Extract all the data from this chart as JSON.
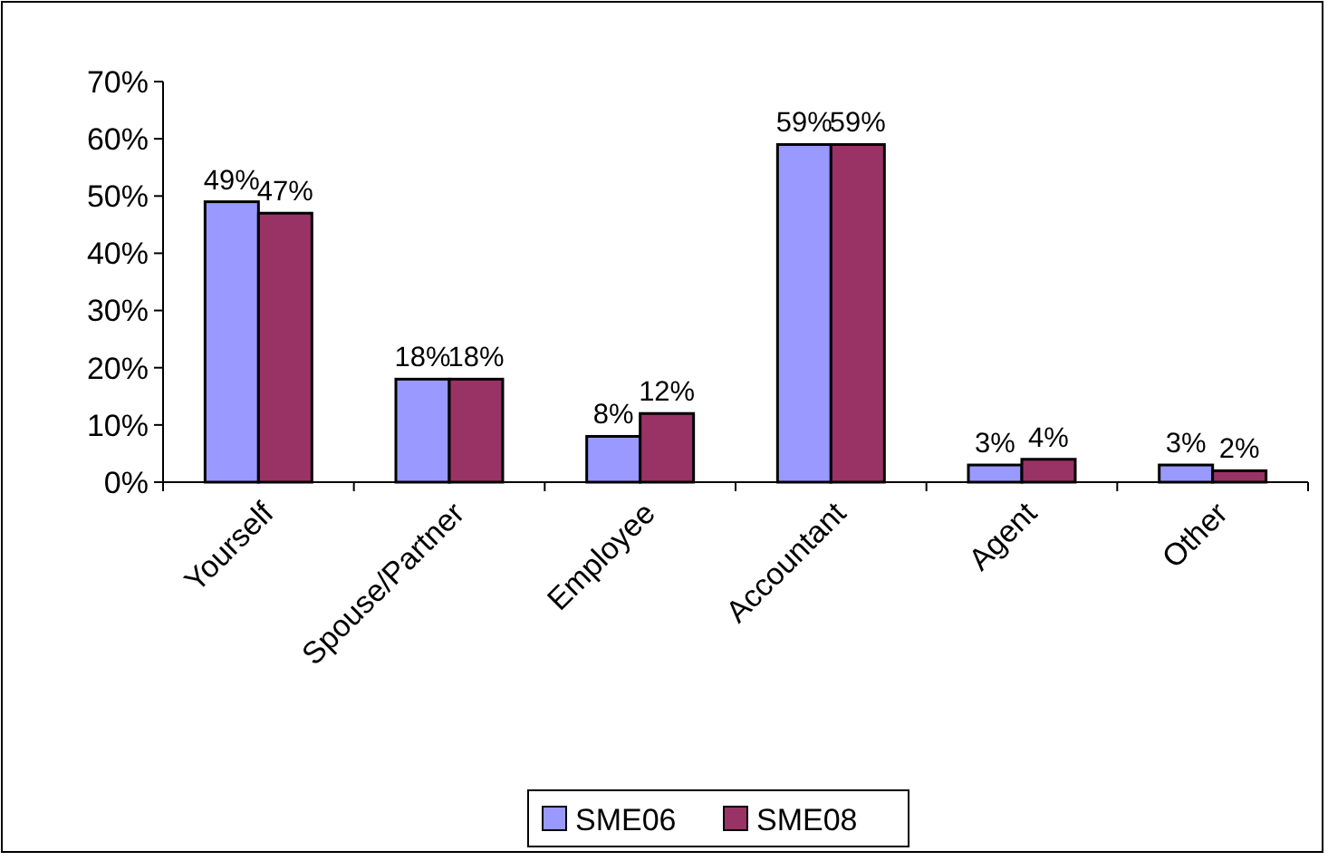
{
  "chart_data": {
    "type": "bar",
    "categories": [
      "Yourself",
      "Spouse/Partner",
      "Employee",
      "Accountant",
      "Agent",
      "Other"
    ],
    "series": [
      {
        "name": "SME06",
        "color": "#9999ff",
        "values": [
          49,
          18,
          8,
          59,
          3,
          3
        ],
        "value_labels": [
          "49%",
          "18%",
          "8%",
          "59%",
          "3%",
          "3%"
        ]
      },
      {
        "name": "SME08",
        "color": "#993366",
        "values": [
          47,
          18,
          12,
          59,
          4,
          2
        ],
        "value_labels": [
          "47%",
          "18%",
          "12%",
          "59%",
          "4%",
          "2%"
        ]
      }
    ],
    "ylim": [
      0,
      70
    ],
    "yticks": [
      {
        "value": 0,
        "label": "0%"
      },
      {
        "value": 10,
        "label": "10%"
      },
      {
        "value": 20,
        "label": "20%"
      },
      {
        "value": 30,
        "label": "30%"
      },
      {
        "value": 40,
        "label": "40%"
      },
      {
        "value": 50,
        "label": "50%"
      },
      {
        "value": 60,
        "label": "60%"
      },
      {
        "value": 70,
        "label": "70%"
      }
    ],
    "grid": false,
    "legend": "bottom"
  }
}
